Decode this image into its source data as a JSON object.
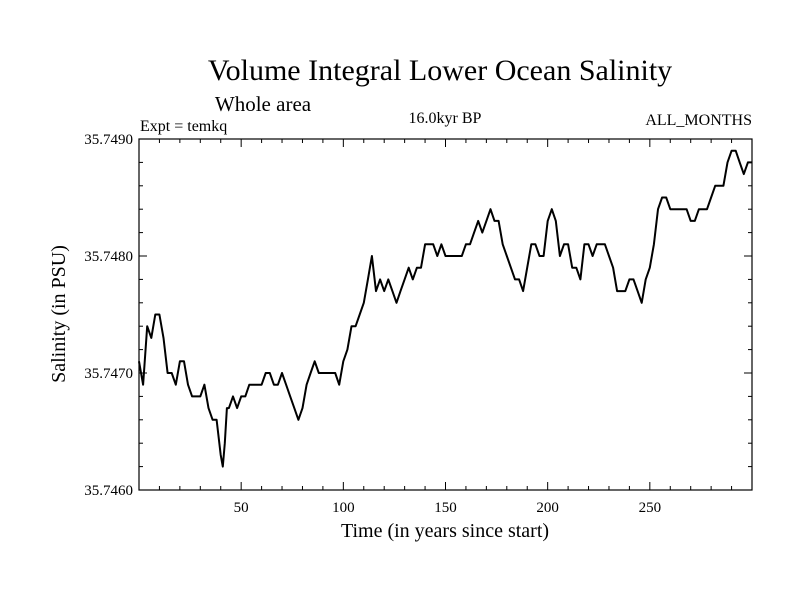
{
  "chart_data": {
    "type": "line",
    "title": "Volume Integral Lower Ocean Salinity",
    "subtitle": "Whole area",
    "experiment": "Expt = temkq",
    "period": "16.0kyr BP",
    "months": "ALL_MONTHS",
    "xlabel": "Time (in years since start)",
    "ylabel": "Salinity (in PSU)",
    "xlim": [
      0,
      300
    ],
    "ylim": [
      35.746,
      35.749
    ],
    "xticks": [
      50,
      100,
      150,
      200,
      250
    ],
    "xtick_labels": [
      "50",
      "100",
      "150",
      "200",
      "250"
    ],
    "yticks": [
      35.746,
      35.747,
      35.748,
      35.749
    ],
    "ytick_labels": [
      "35.7460",
      "35.7470",
      "35.7480",
      "35.7490"
    ],
    "series": [
      {
        "name": "Salinity",
        "x": [
          0,
          2,
          4,
          6,
          8,
          10,
          12,
          14,
          16,
          18,
          20,
          22,
          24,
          26,
          28,
          30,
          32,
          34,
          36,
          38,
          40,
          41,
          42,
          43,
          44,
          46,
          48,
          50,
          52,
          54,
          56,
          58,
          60,
          62,
          64,
          66,
          68,
          70,
          72,
          74,
          76,
          78,
          80,
          82,
          84,
          86,
          88,
          90,
          92,
          94,
          96,
          98,
          100,
          102,
          104,
          106,
          108,
          110,
          112,
          114,
          116,
          118,
          120,
          122,
          124,
          126,
          128,
          130,
          132,
          134,
          136,
          138,
          140,
          142,
          144,
          146,
          148,
          150,
          152,
          154,
          156,
          158,
          160,
          162,
          164,
          166,
          168,
          170,
          172,
          174,
          176,
          178,
          180,
          182,
          184,
          186,
          188,
          190,
          192,
          194,
          196,
          198,
          200,
          202,
          204,
          206,
          208,
          210,
          212,
          214,
          216,
          218,
          220,
          222,
          224,
          226,
          228,
          230,
          232,
          234,
          236,
          238,
          240,
          242,
          244,
          246,
          248,
          250,
          252,
          254,
          256,
          258,
          260,
          262,
          264,
          266,
          268,
          270,
          272,
          274,
          276,
          278,
          280,
          282,
          284,
          286,
          288,
          290,
          292,
          294,
          296,
          298,
          300
        ],
        "values": [
          35.7471,
          35.7469,
          35.7474,
          35.7473,
          35.7475,
          35.7475,
          35.7473,
          35.747,
          35.747,
          35.7469,
          35.7471,
          35.7471,
          35.7469,
          35.7468,
          35.7468,
          35.7468,
          35.7469,
          35.7467,
          35.7466,
          35.7466,
          35.7463,
          35.7462,
          35.7464,
          35.7467,
          35.7467,
          35.7468,
          35.7467,
          35.7468,
          35.7468,
          35.7469,
          35.7469,
          35.7469,
          35.7469,
          35.747,
          35.747,
          35.7469,
          35.7469,
          35.747,
          35.7469,
          35.7468,
          35.7467,
          35.7466,
          35.7467,
          35.7469,
          35.747,
          35.7471,
          35.747,
          35.747,
          35.747,
          35.747,
          35.747,
          35.7469,
          35.7471,
          35.7472,
          35.7474,
          35.7474,
          35.7475,
          35.7476,
          35.7478,
          35.748,
          35.7477,
          35.7478,
          35.7477,
          35.7478,
          35.7477,
          35.7476,
          35.7477,
          35.7478,
          35.7479,
          35.7478,
          35.7479,
          35.7479,
          35.7481,
          35.7481,
          35.7481,
          35.748,
          35.7481,
          35.748,
          35.748,
          35.748,
          35.748,
          35.748,
          35.7481,
          35.7481,
          35.7482,
          35.7483,
          35.7482,
          35.7483,
          35.7484,
          35.7483,
          35.7483,
          35.7481,
          35.748,
          35.7479,
          35.7478,
          35.7478,
          35.7477,
          35.7479,
          35.7481,
          35.7481,
          35.748,
          35.748,
          35.7483,
          35.7484,
          35.7483,
          35.748,
          35.7481,
          35.7481,
          35.7479,
          35.7479,
          35.7478,
          35.7481,
          35.7481,
          35.748,
          35.7481,
          35.7481,
          35.7481,
          35.748,
          35.7479,
          35.7477,
          35.7477,
          35.7477,
          35.7478,
          35.7478,
          35.7477,
          35.7476,
          35.7478,
          35.7479,
          35.7481,
          35.7484,
          35.7485,
          35.7485,
          35.7484,
          35.7484,
          35.7484,
          35.7484,
          35.7484,
          35.7483,
          35.7483,
          35.7484,
          35.7484,
          35.7484,
          35.7485,
          35.7486,
          35.7486,
          35.7486,
          35.7488,
          35.7489,
          35.7489,
          35.7488,
          35.7487,
          35.7488,
          35.7488
        ]
      }
    ]
  }
}
